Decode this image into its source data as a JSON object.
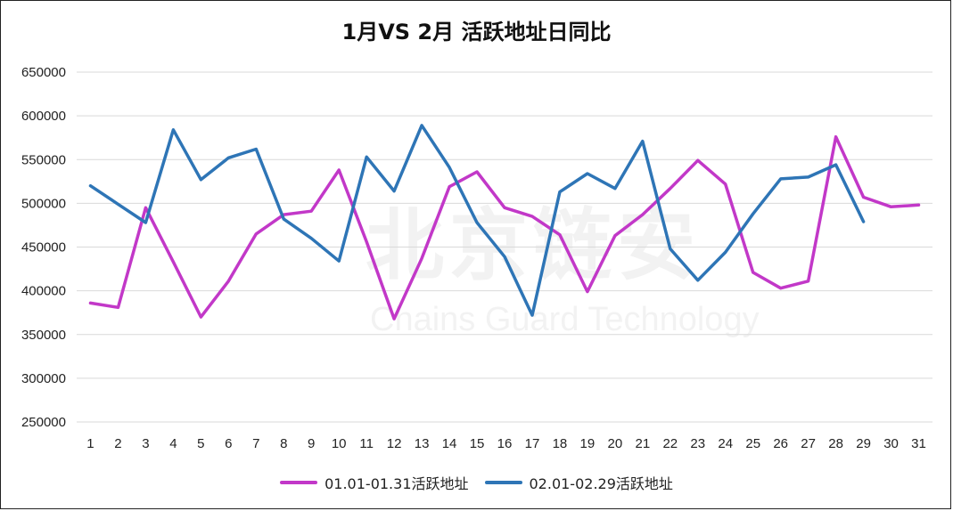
{
  "watermark": {
    "main": "北京链安",
    "sub": "Chains Guard Technology"
  },
  "chart_data": {
    "type": "line",
    "title": "1月VS 2月 活跃地址日同比",
    "xlabel": "",
    "ylabel": "",
    "categories": [
      "1",
      "2",
      "3",
      "4",
      "5",
      "6",
      "7",
      "8",
      "9",
      "10",
      "11",
      "12",
      "13",
      "14",
      "15",
      "16",
      "17",
      "18",
      "19",
      "20",
      "21",
      "22",
      "23",
      "24",
      "25",
      "26",
      "27",
      "28",
      "29",
      "30",
      "31"
    ],
    "ylim": [
      250000,
      650000
    ],
    "yticks": [
      250000,
      300000,
      350000,
      400000,
      450000,
      500000,
      550000,
      600000,
      650000
    ],
    "grid": true,
    "legend_position": "bottom",
    "series": [
      {
        "name": "01.01-01.31活跃地址",
        "color": "#c238c8",
        "values": [
          386000,
          381000,
          495000,
          433000,
          370000,
          411000,
          465000,
          487000,
          491000,
          538000,
          456000,
          368000,
          437000,
          519000,
          536000,
          495000,
          485000,
          464000,
          399000,
          463000,
          487000,
          517000,
          549000,
          522000,
          421000,
          403000,
          411000,
          576000,
          507000,
          496000,
          498000
        ]
      },
      {
        "name": "02.01-02.29活跃地址",
        "color": "#2e75b6",
        "values": [
          520000,
          499000,
          478000,
          584000,
          527000,
          552000,
          562000,
          482000,
          460000,
          434000,
          553000,
          514000,
          589000,
          541000,
          478000,
          439000,
          372000,
          513000,
          534000,
          517000,
          571000,
          448000,
          412000,
          444000,
          488000,
          528000,
          530000,
          544000,
          479000,
          null,
          null
        ]
      }
    ]
  }
}
